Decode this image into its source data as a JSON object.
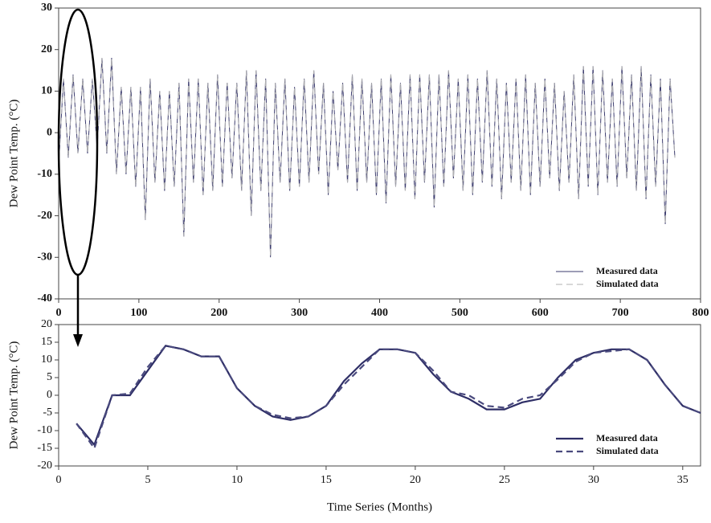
{
  "chart_data": [
    {
      "type": "line",
      "ylabel": "Dew Point Temp. (°C)",
      "xlim": [
        0,
        800
      ],
      "ylim": [
        -40,
        30
      ],
      "xticks": [
        0,
        100,
        200,
        300,
        400,
        500,
        600,
        700,
        800
      ],
      "yticks": [
        -40,
        -30,
        -20,
        -10,
        0,
        10,
        20,
        30
      ],
      "legend": "lower right",
      "x": [
        0,
        6,
        12,
        18,
        24,
        30,
        36,
        42,
        48,
        54,
        60,
        66,
        72,
        78,
        84,
        90,
        96,
        102,
        108,
        114,
        120,
        126,
        132,
        138,
        144,
        150,
        156,
        162,
        168,
        174,
        180,
        186,
        192,
        198,
        204,
        210,
        216,
        222,
        228,
        234,
        240,
        246,
        252,
        258,
        264,
        270,
        276,
        282,
        288,
        294,
        300,
        306,
        312,
        318,
        324,
        330,
        336,
        342,
        348,
        354,
        360,
        366,
        372,
        378,
        384,
        390,
        396,
        402,
        408,
        414,
        420,
        426,
        432,
        438,
        444,
        450,
        456,
        462,
        468,
        474,
        480,
        486,
        492,
        498,
        504,
        510,
        516,
        522,
        528,
        534,
        540,
        546,
        552,
        558,
        564,
        570,
        576,
        582,
        588,
        594,
        600,
        606,
        612,
        618,
        624,
        630,
        636,
        642,
        648,
        654,
        660,
        666,
        672,
        678,
        684,
        690,
        696,
        702,
        708,
        714,
        720,
        726,
        732,
        738,
        744,
        750,
        756,
        762,
        768
      ],
      "series": [
        {
          "name": "Measured data",
          "color": "#3b3b6e",
          "style": "solid",
          "values": [
            -8,
            13,
            -6,
            14,
            -5,
            13,
            -5,
            13,
            -4,
            18,
            -5,
            18,
            -10,
            11,
            -10,
            11,
            -13,
            11,
            -21,
            13,
            -12,
            10,
            -14,
            10,
            -13,
            12,
            -25,
            13,
            -12,
            13,
            -15,
            12,
            -14,
            14,
            -13,
            12,
            -11,
            12,
            -14,
            15,
            -20,
            15,
            -14,
            13,
            -30,
            12,
            -12,
            13,
            -14,
            11,
            -13,
            13,
            -12,
            15,
            -10,
            12,
            -15,
            10,
            -9,
            12,
            -12,
            14,
            -14,
            13,
            -12,
            12,
            -15,
            13,
            -17,
            14,
            -13,
            12,
            -14,
            14,
            -16,
            14,
            -12,
            14,
            -18,
            14,
            -13,
            15,
            -11,
            13,
            -14,
            14,
            -15,
            13,
            -12,
            15,
            -13,
            13,
            -16,
            12,
            -12,
            13,
            -14,
            14,
            -15,
            12,
            -13,
            13,
            -11,
            12,
            -14,
            10,
            -12,
            14,
            -16,
            16,
            -13,
            16,
            -15,
            15,
            -12,
            13,
            -13,
            16,
            -11,
            14,
            -14,
            16,
            -16,
            14,
            -13,
            13,
            -22,
            13,
            -6
          ]
        },
        {
          "name": "Simulated data",
          "color": "#b0b0b0",
          "style": "dashed",
          "values": [
            -8,
            13,
            -6,
            14,
            -5,
            13,
            -5,
            13,
            -4,
            18,
            -5,
            18,
            -10,
            11,
            -10,
            11,
            -13,
            11,
            -21,
            13,
            -12,
            10,
            -14,
            10,
            -13,
            12,
            -25,
            13,
            -12,
            13,
            -15,
            12,
            -14,
            14,
            -13,
            12,
            -11,
            12,
            -14,
            15,
            -20,
            15,
            -14,
            13,
            -30,
            12,
            -12,
            13,
            -14,
            11,
            -13,
            13,
            -12,
            15,
            -10,
            12,
            -15,
            10,
            -9,
            12,
            -12,
            14,
            -14,
            13,
            -12,
            12,
            -15,
            13,
            -17,
            14,
            -13,
            12,
            -14,
            14,
            -16,
            14,
            -12,
            14,
            -18,
            14,
            -13,
            15,
            -11,
            13,
            -14,
            14,
            -15,
            13,
            -12,
            15,
            -13,
            13,
            -16,
            12,
            -12,
            13,
            -14,
            14,
            -15,
            12,
            -13,
            13,
            -11,
            12,
            -14,
            10,
            -12,
            14,
            -16,
            16,
            -13,
            16,
            -15,
            15,
            -12,
            13,
            -13,
            16,
            -11,
            14,
            -14,
            16,
            -16,
            14,
            -13,
            13,
            -22,
            13,
            -6
          ]
        }
      ]
    },
    {
      "type": "line",
      "ylabel": "Dew Point Temp. (°C)",
      "xlabel": "Time Series (Months)",
      "xlim": [
        0,
        36
      ],
      "ylim": [
        -20,
        20
      ],
      "xticks": [
        0,
        5,
        10,
        15,
        20,
        25,
        30,
        35
      ],
      "yticks": [
        -20,
        -15,
        -10,
        -5,
        0,
        5,
        10,
        15,
        20
      ],
      "legend": "lower right",
      "x": [
        1,
        2,
        3,
        4,
        5,
        6,
        7,
        8,
        9,
        10,
        11,
        12,
        13,
        14,
        15,
        16,
        17,
        18,
        19,
        20,
        21,
        22,
        23,
        24,
        25,
        26,
        27,
        28,
        29,
        30,
        31,
        32,
        33,
        34,
        35,
        36
      ],
      "series": [
        {
          "name": "Measured data",
          "color": "#2e2e66",
          "style": "solid",
          "values": [
            -8,
            -14,
            0,
            0,
            7,
            14,
            13,
            11,
            11,
            2,
            -3,
            -6,
            -7,
            -6,
            -3,
            4,
            9,
            13,
            13,
            12,
            6,
            1,
            -1,
            -4,
            -4,
            -2,
            -1,
            5,
            10,
            12,
            13,
            13,
            10,
            3,
            -3,
            -5
          ]
        },
        {
          "name": "Simulated data",
          "color": "#4a4a7e",
          "style": "dashed",
          "values": [
            -8,
            -15,
            0,
            0.5,
            8,
            14,
            13,
            11,
            11,
            2,
            -3,
            -5.5,
            -6.5,
            -6,
            -3,
            3,
            8,
            13,
            13,
            12,
            7,
            1,
            0,
            -3,
            -3.5,
            -1,
            0,
            4.5,
            9.5,
            12,
            12.5,
            13,
            10,
            3,
            -3,
            -5
          ]
        }
      ]
    }
  ]
}
